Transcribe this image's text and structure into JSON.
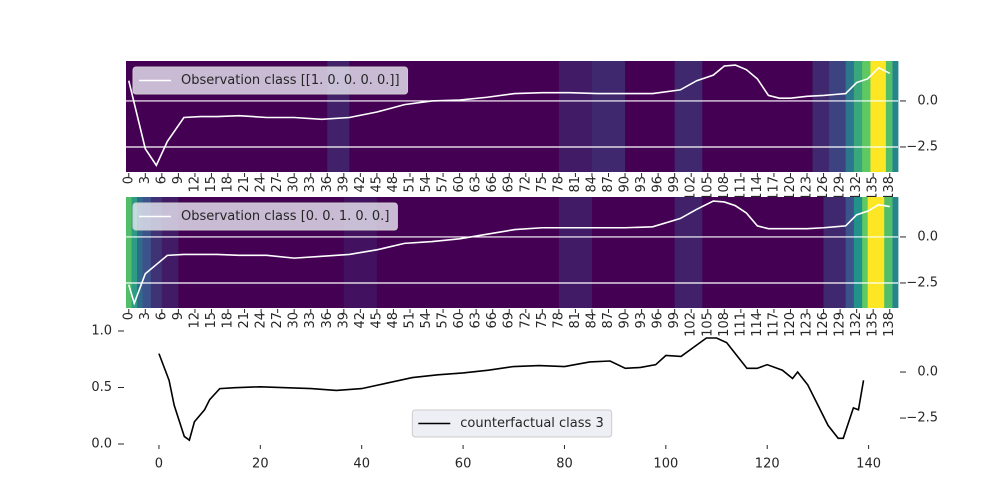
{
  "chart_data": [
    {
      "type": "heatmap",
      "cmap": "viridis",
      "heatmap": {
        "bins": [
          -0.5,
          36,
          40,
          78,
          84,
          90,
          99,
          104,
          124,
          127,
          130,
          131.5,
          133,
          134.5,
          137.3,
          138.5,
          139.5
        ],
        "values": [
          0,
          0.1,
          0,
          0.08,
          0.12,
          0,
          0.12,
          0,
          0.12,
          0.2,
          0.4,
          0.6,
          0.75,
          1.0,
          0.7,
          0.45
        ]
      },
      "x": [
        0,
        3,
        5,
        7,
        10,
        13,
        16,
        20,
        25,
        30,
        35,
        40,
        45,
        50,
        55,
        60,
        65,
        70,
        75,
        80,
        85,
        90,
        95,
        100,
        103,
        106,
        108,
        110,
        112,
        114,
        116,
        118,
        120,
        123,
        126,
        128,
        130,
        132,
        134,
        136,
        138
      ],
      "series": [
        {
          "name": "Observation class [[1. 0. 0. 0. 0.]]",
          "color": "#ffffff",
          "values": [
            1.1,
            -2.6,
            -3.5,
            -2.2,
            -0.9,
            -0.85,
            -0.85,
            -0.8,
            -0.9,
            -0.9,
            -1.0,
            -0.9,
            -0.6,
            -0.2,
            0.0,
            0.05,
            0.2,
            0.4,
            0.45,
            0.45,
            0.4,
            0.4,
            0.4,
            0.6,
            1.1,
            1.4,
            1.9,
            1.95,
            1.7,
            1.2,
            0.3,
            0.15,
            0.15,
            0.25,
            0.3,
            0.35,
            0.4,
            1.0,
            1.2,
            1.8,
            1.5
          ]
        }
      ],
      "xlim": [
        -0.5,
        139.5
      ],
      "xticks": [
        0,
        3,
        6,
        9,
        12,
        15,
        18,
        21,
        24,
        27,
        30,
        33,
        36,
        39,
        42,
        45,
        48,
        51,
        54,
        57,
        60,
        63,
        66,
        69,
        72,
        75,
        78,
        81,
        84,
        87,
        90,
        93,
        96,
        99,
        102,
        105,
        108,
        111,
        114,
        117,
        120,
        123,
        126,
        129,
        132,
        135,
        138
      ],
      "xtick_rotation": 90,
      "ylim": [
        -3.86,
        2.17
      ],
      "yticks": [
        {
          "value": 0,
          "label": "0.0"
        },
        {
          "value": -2.5,
          "label": "−2.5"
        }
      ],
      "yaxis_side": "right",
      "grid": true,
      "legend_loc": "upper left"
    },
    {
      "type": "heatmap",
      "cmap": "viridis",
      "heatmap": {
        "bins": [
          -0.5,
          0.5,
          1.5,
          2.5,
          4,
          6,
          9,
          39,
          45,
          78,
          84,
          99,
          104,
          126,
          130,
          131.5,
          133,
          134,
          137,
          138.5,
          139.5
        ],
        "values": [
          0.7,
          0.55,
          0.35,
          0.25,
          0.15,
          0.08,
          0,
          0.05,
          0,
          0.08,
          0,
          0.1,
          0,
          0.12,
          0.25,
          0.5,
          0.75,
          1.0,
          0.7,
          0.45
        ]
      },
      "x": [
        0,
        1,
        3,
        5,
        7,
        10,
        13,
        16,
        20,
        25,
        30,
        35,
        40,
        45,
        50,
        55,
        60,
        65,
        70,
        75,
        80,
        85,
        90,
        95,
        100,
        103,
        106,
        108,
        110,
        112,
        114,
        116,
        118,
        120,
        123,
        126,
        128,
        130,
        132,
        134,
        136,
        138
      ],
      "series": [
        {
          "name": "Observation class [0. 0. 1. 0. 0.]",
          "color": "#ffffff",
          "values": [
            -2.6,
            -3.6,
            -2.0,
            -1.5,
            -1.0,
            -0.95,
            -0.95,
            -0.95,
            -1.0,
            -1.0,
            -1.15,
            -1.05,
            -0.95,
            -0.7,
            -0.35,
            -0.25,
            -0.1,
            0.15,
            0.4,
            0.5,
            0.5,
            0.5,
            0.5,
            0.55,
            1.0,
            1.5,
            1.95,
            1.9,
            1.7,
            1.3,
            0.6,
            0.45,
            0.45,
            0.45,
            0.45,
            0.5,
            0.55,
            0.6,
            1.2,
            1.4,
            1.75,
            1.65
          ]
        }
      ],
      "xlim": [
        -0.5,
        139.5
      ],
      "xticks": [
        0,
        3,
        6,
        9,
        12,
        15,
        18,
        21,
        24,
        27,
        30,
        33,
        36,
        39,
        42,
        45,
        48,
        51,
        54,
        57,
        60,
        63,
        66,
        69,
        72,
        75,
        78,
        81,
        84,
        87,
        90,
        93,
        96,
        99,
        102,
        105,
        108,
        111,
        114,
        117,
        120,
        123,
        126,
        129,
        132,
        135,
        138
      ],
      "xtick_rotation": 90,
      "ylim": [
        -3.86,
        2.17
      ],
      "yticks": [
        {
          "value": 0,
          "label": "0.0"
        },
        {
          "value": -2.5,
          "label": "−2.5"
        }
      ],
      "yaxis_side": "right",
      "grid": true,
      "legend_loc": "upper left"
    },
    {
      "type": "line",
      "x": [
        0,
        2,
        3,
        5,
        6,
        7,
        9,
        10,
        12,
        15,
        20,
        25,
        30,
        35,
        40,
        45,
        50,
        55,
        60,
        65,
        70,
        75,
        80,
        85,
        89,
        92,
        95,
        98,
        100,
        103,
        106,
        108,
        110,
        112,
        114,
        116,
        118,
        120,
        123,
        125,
        126,
        128,
        130,
        132,
        134,
        135,
        137,
        138,
        139
      ],
      "series": [
        {
          "name": "counterfactual class 3",
          "color": "#000000",
          "axis": "y2",
          "values": [
            1.0,
            -0.45,
            -1.8,
            -3.5,
            -3.7,
            -2.7,
            -2.05,
            -1.5,
            -0.9,
            -0.85,
            -0.8,
            -0.85,
            -0.9,
            -1.0,
            -0.9,
            -0.6,
            -0.3,
            -0.15,
            -0.05,
            0.1,
            0.3,
            0.35,
            0.3,
            0.55,
            0.6,
            0.2,
            0.25,
            0.4,
            0.9,
            0.85,
            1.45,
            1.85,
            1.85,
            1.6,
            0.9,
            0.2,
            0.2,
            0.4,
            0.1,
            -0.35,
            0.0,
            -0.7,
            -1.8,
            -2.9,
            -3.6,
            -3.6,
            -1.95,
            -2.05,
            -0.45
          ]
        }
      ],
      "xlim": [
        -6.5,
        145.8
      ],
      "xticks": [
        0,
        20,
        40,
        60,
        80,
        100,
        120,
        140
      ],
      "ylim": [
        0,
        1
      ],
      "yticks": [
        {
          "value": 0,
          "label": "0.0"
        },
        {
          "value": 0.5,
          "label": "0.5"
        },
        {
          "value": 1,
          "label": "1.0"
        }
      ],
      "y2lim": [
        -3.91,
        2.23
      ],
      "y2ticks": [
        {
          "value": 0,
          "label": "0.0"
        },
        {
          "value": -2.5,
          "label": "−2.5"
        }
      ],
      "legend_loc": "lower center"
    }
  ]
}
